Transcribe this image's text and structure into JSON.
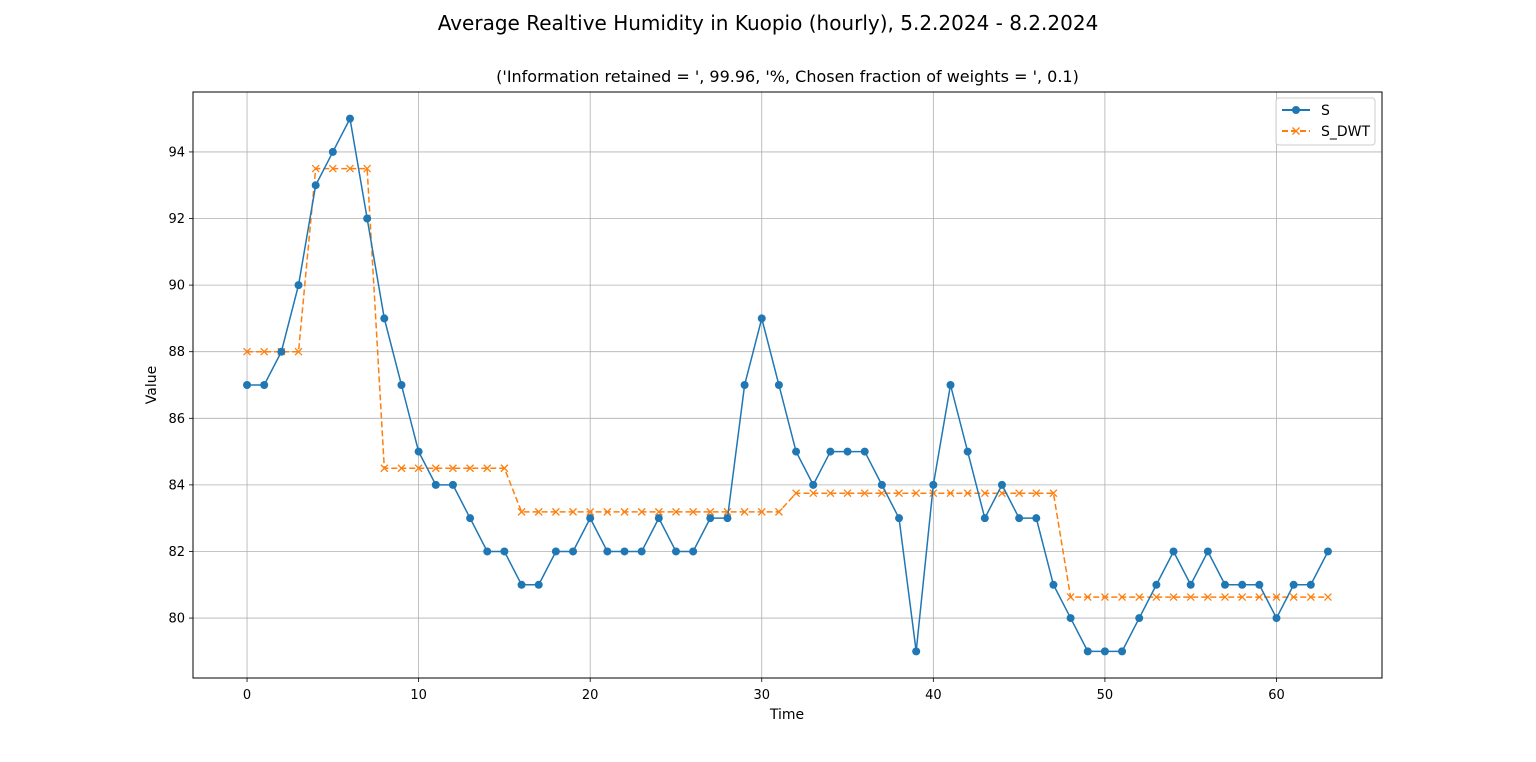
{
  "chart_data": {
    "type": "line",
    "title": "Average Realtive Humidity in Kuopio (hourly), 5.2.2024 - 8.2.2024",
    "subtitle": "('Information retained = ', 99.96, '%, Chosen fraction of weights = ', 0.1)",
    "xlabel": "Time",
    "ylabel": "Value",
    "xlim": [
      -3.15,
      66.15
    ],
    "ylim": [
      78.2,
      95.8
    ],
    "xticks": [
      0,
      10,
      20,
      30,
      40,
      50,
      60
    ],
    "yticks": [
      80,
      82,
      84,
      86,
      88,
      90,
      92,
      94
    ],
    "grid": true,
    "legend_position": "top-right",
    "series": [
      {
        "name": "S",
        "color": "#1f77b4",
        "linestyle": "solid",
        "marker": "circle",
        "values": [
          87,
          87,
          88,
          90,
          93,
          94,
          95,
          92,
          89,
          87,
          85,
          84,
          84,
          83,
          82,
          82,
          81,
          81,
          82,
          82,
          83,
          82,
          82,
          82,
          83,
          82,
          82,
          83,
          83,
          87,
          89,
          87,
          85,
          84,
          85,
          85,
          85,
          84,
          83,
          79,
          84,
          87,
          85,
          83,
          84,
          83,
          83,
          81,
          80,
          79,
          79,
          79,
          80,
          81,
          82,
          81,
          82,
          81,
          81,
          81,
          80,
          81,
          81,
          82
        ]
      },
      {
        "name": "S_DWT",
        "color": "#ff7f0e",
        "linestyle": "dashed-step",
        "marker": "x",
        "values": [
          88,
          88,
          88,
          88,
          93.5,
          93.5,
          93.5,
          93.5,
          84.5,
          84.5,
          84.5,
          84.5,
          84.5,
          84.5,
          84.5,
          84.5,
          83.19,
          83.19,
          83.19,
          83.19,
          83.19,
          83.19,
          83.19,
          83.19,
          83.19,
          83.19,
          83.19,
          83.19,
          83.19,
          83.19,
          83.19,
          83.19,
          83.75,
          83.75,
          83.75,
          83.75,
          83.75,
          83.75,
          83.75,
          83.75,
          83.75,
          83.75,
          83.75,
          83.75,
          83.75,
          83.75,
          83.75,
          83.75,
          80.63,
          80.63,
          80.63,
          80.63,
          80.63,
          80.63,
          80.63,
          80.63,
          80.63,
          80.63,
          80.63,
          80.63,
          80.63,
          80.63,
          80.63,
          80.63
        ]
      }
    ]
  }
}
